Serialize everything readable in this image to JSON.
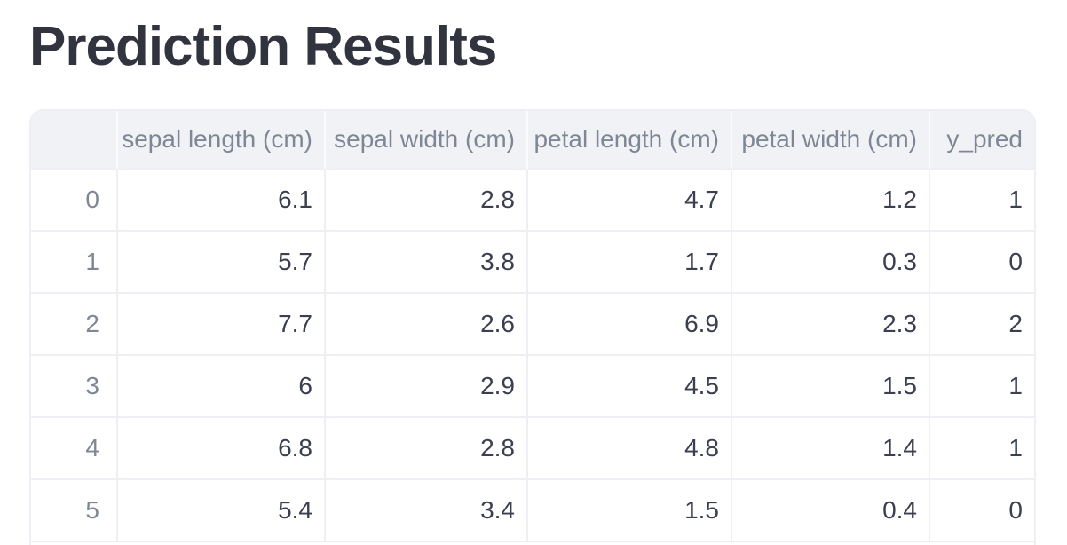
{
  "heading": {
    "title": "Prediction Results"
  },
  "table": {
    "column_headers": [
      "",
      "sepal length (cm)",
      "sepal width (cm)",
      "petal length (cm)",
      "petal width (cm)",
      "y_pred"
    ],
    "rows": [
      {
        "index": "0",
        "values": [
          "6.1",
          "2.8",
          "4.7",
          "1.2",
          "1"
        ]
      },
      {
        "index": "1",
        "values": [
          "5.7",
          "3.8",
          "1.7",
          "0.3",
          "0"
        ]
      },
      {
        "index": "2",
        "values": [
          "7.7",
          "2.6",
          "6.9",
          "2.3",
          "2"
        ]
      },
      {
        "index": "3",
        "values": [
          "6",
          "2.9",
          "4.5",
          "1.5",
          "1"
        ]
      },
      {
        "index": "4",
        "values": [
          "6.8",
          "2.8",
          "4.8",
          "1.4",
          "1"
        ]
      },
      {
        "index": "5",
        "values": [
          "5.4",
          "3.4",
          "1.5",
          "0.4",
          "0"
        ]
      }
    ]
  },
  "colors": {
    "background": "#ffffff",
    "heading_text": "#31333F",
    "header_bg": "#f0f2f6",
    "header_text": "#7f8796",
    "cell_text": "#3b3f4f",
    "index_text": "#7f8796",
    "border": "#edeff5"
  }
}
